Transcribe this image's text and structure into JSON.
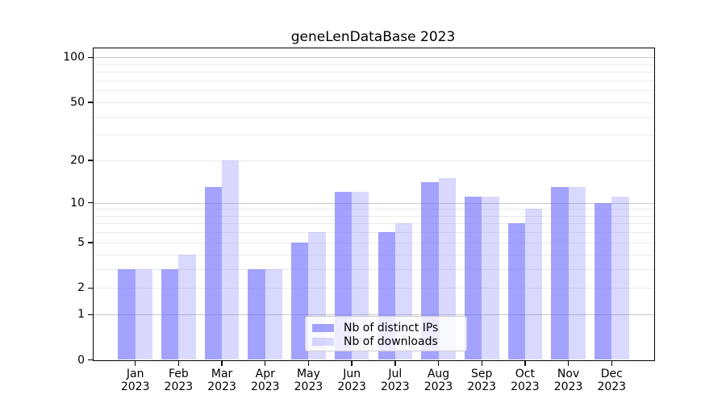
{
  "chart_data": {
    "type": "bar",
    "title": "geneLenDataBase 2023",
    "categories": [
      "Jan",
      "Feb",
      "Mar",
      "Apr",
      "May",
      "Jun",
      "Jul",
      "Aug",
      "Sep",
      "Oct",
      "Nov",
      "Dec"
    ],
    "year_label": "2023",
    "series": [
      {
        "name": "Nb of distinct IPs",
        "color": "rgba(102,102,255,0.60)",
        "values": [
          3,
          3,
          13,
          3,
          5,
          12,
          6,
          14,
          11,
          7,
          13,
          10
        ]
      },
      {
        "name": "Nb of downloads",
        "color": "rgba(102,102,255,0.25)",
        "values": [
          3,
          4,
          20,
          3,
          6,
          12,
          7,
          15,
          11,
          9,
          13,
          11
        ]
      }
    ],
    "xlabel": "",
    "ylabel": "",
    "yscale": "log1p",
    "ylim": [
      0,
      116
    ],
    "yticks": [
      0,
      1,
      2,
      5,
      10,
      20,
      50,
      100
    ],
    "major_gridlines": [
      1,
      10,
      100
    ],
    "minor_gridlines": [
      2,
      3,
      4,
      5,
      6,
      7,
      8,
      9,
      20,
      30,
      40,
      50,
      60,
      70,
      80,
      90
    ],
    "grid": "on",
    "legend_position": "lower center"
  },
  "colors": {
    "bar_dark": "rgba(102,102,255,0.60)",
    "bar_light": "rgba(102,102,255,0.25)",
    "major_grid": "#c9c9c9",
    "minor_grid": "#ebebeb",
    "spine": "#000000",
    "legend_border": "#cccccc"
  }
}
